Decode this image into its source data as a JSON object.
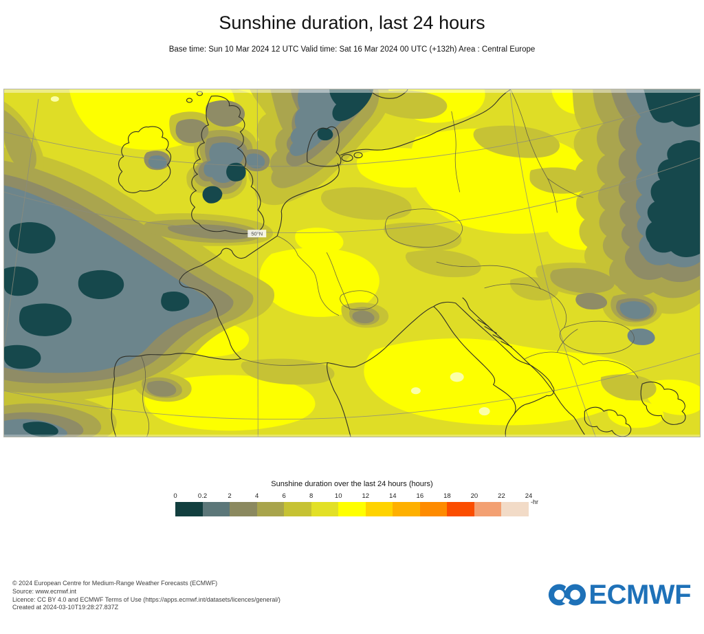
{
  "header": {
    "title": "Sunshine duration, last 24 hours",
    "subtitle": "Base time: Sun 10 Mar 2024 12 UTC Valid time: Sat 16 Mar 2024 00 UTC (+132h) Area : Central Europe"
  },
  "map": {
    "label_50n": "50°N",
    "palette": {
      "band_0_02": "#16484c",
      "band_02_2": "#6c858c",
      "band_2_4": "#8f8c66",
      "band_4_6": "#aaa54e",
      "band_6_8": "#c6c235",
      "band_8_10": "#dfdd26",
      "band_10_12": "#fdff00",
      "pale_spot": "#fbffa8",
      "coast": "#2f2f26",
      "border": "#55544a",
      "graticule": "#8c8c7c"
    }
  },
  "legend": {
    "title": "Sunshine duration over the last 24 hours (hours)",
    "unit": "-hr",
    "ticks": [
      "0",
      "0.2",
      "2",
      "4",
      "6",
      "8",
      "10",
      "12",
      "14",
      "16",
      "18",
      "20",
      "22",
      "24"
    ],
    "colors": [
      "#123f3f",
      "#5c7779",
      "#8b895f",
      "#a8a44c",
      "#c6c233",
      "#e2e026",
      "#ffff00",
      "#ffd300",
      "#feb000",
      "#fe8b00",
      "#fb4d00",
      "#f3a072",
      "#f2dbc7"
    ]
  },
  "footer": {
    "lines": [
      "© 2024 European Centre for Medium-Range Weather Forecasts (ECMWF)",
      "Source: www.ecmwf.int",
      "Licence: CC BY 4.0 and ECMWF Terms of Use (https://apps.ecmwf.int/datasets/licences/general/)",
      "Created at 2024-03-10T19:28:27.837Z"
    ]
  },
  "logo": {
    "text": "ECMWF",
    "color": "#1e71b8"
  }
}
